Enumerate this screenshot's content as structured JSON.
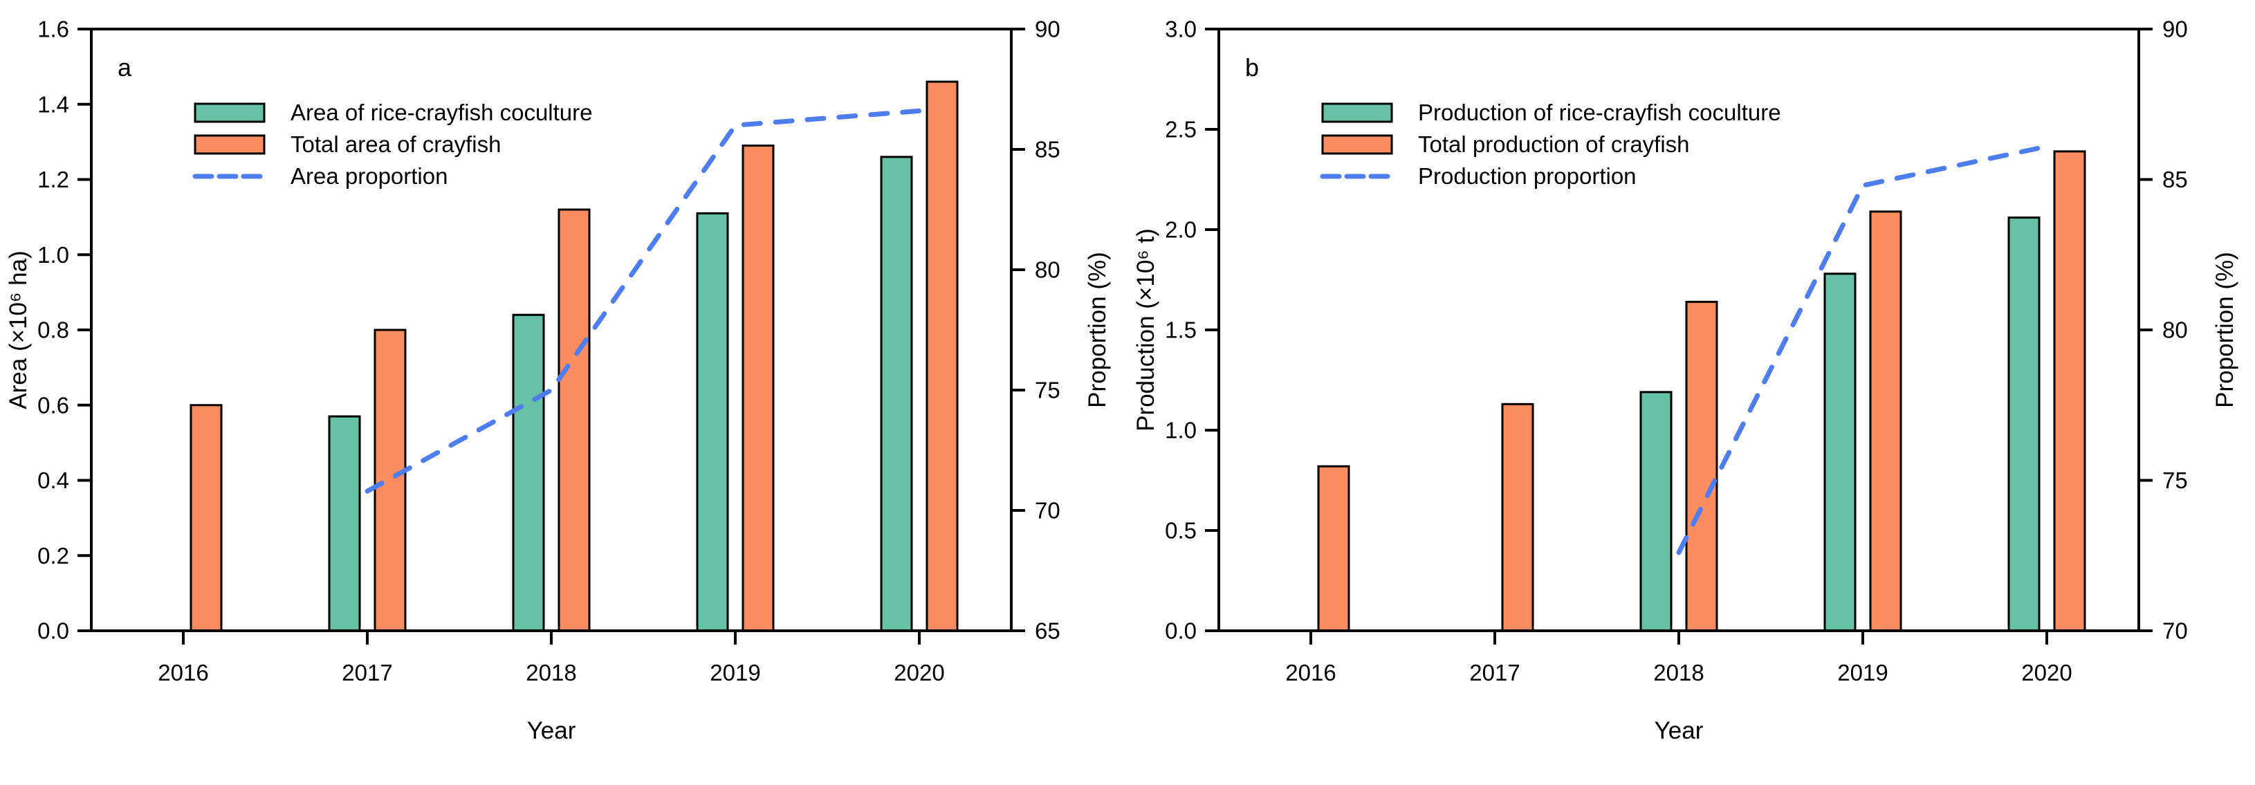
{
  "figure": {
    "background": "#ffffff",
    "description": "Two-panel bar and line chart of rice-crayfish coculture in 2016-2020"
  },
  "colors": {
    "coculture_bar": "#66C2A5",
    "total_bar": "#FB8D61",
    "proportion_line": "#4E7DEE",
    "bar_outline": "#000000",
    "axis": "#000000"
  },
  "chart_data": [
    {
      "type": "bar",
      "panel_label": "a",
      "categories": [
        "2016",
        "2017",
        "2018",
        "2019",
        "2020"
      ],
      "xlabel": "Year",
      "ylabel_left": "Area (×10⁶ ha)",
      "ylabel_right": "Proportion (%)",
      "ylim_left": [
        0.0,
        1.6
      ],
      "yticks_left": [
        "0.0",
        "0.2",
        "0.4",
        "0.6",
        "0.8",
        "1.0",
        "1.2",
        "1.4",
        "1.6"
      ],
      "ylim_right": [
        65,
        90
      ],
      "yticks_right": [
        "65",
        "70",
        "75",
        "80",
        "85",
        "90"
      ],
      "grid": false,
      "legend_position": "upper-left-inside",
      "series": [
        {
          "name": "Area of rice-crayfish coculture",
          "type": "bar",
          "axis": "left",
          "color_key": "coculture_bar",
          "values": [
            null,
            0.57,
            0.84,
            1.11,
            1.26
          ]
        },
        {
          "name": "Total area of crayfish",
          "type": "bar",
          "axis": "left",
          "color_key": "total_bar",
          "values": [
            0.6,
            0.8,
            1.12,
            1.29,
            1.46
          ]
        },
        {
          "name": "Area proportion",
          "type": "line",
          "axis": "right",
          "color_key": "proportion_line",
          "values": [
            null,
            70.8,
            75.0,
            86.0,
            86.6
          ]
        }
      ]
    },
    {
      "type": "bar",
      "panel_label": "b",
      "categories": [
        "2016",
        "2017",
        "2018",
        "2019",
        "2020"
      ],
      "xlabel": "Year",
      "ylabel_left": "Production (×10⁶ t)",
      "ylabel_right": "Proportion (%)",
      "ylim_left": [
        0.0,
        3.0
      ],
      "yticks_left": [
        "0.0",
        "0.5",
        "1.0",
        "1.5",
        "2.0",
        "2.5",
        "3.0"
      ],
      "ylim_right": [
        70,
        90
      ],
      "yticks_right": [
        "70",
        "75",
        "80",
        "85",
        "90"
      ],
      "grid": false,
      "legend_position": "upper-left-inside",
      "series": [
        {
          "name": "Production of rice-crayfish coculture",
          "type": "bar",
          "axis": "left",
          "color_key": "coculture_bar",
          "values": [
            null,
            null,
            1.19,
            1.78,
            2.06
          ]
        },
        {
          "name": "Total production of crayfish",
          "type": "bar",
          "axis": "left",
          "color_key": "total_bar",
          "values": [
            0.82,
            1.13,
            1.64,
            2.09,
            2.39
          ]
        },
        {
          "name": "Production proportion",
          "type": "line",
          "axis": "right",
          "color_key": "proportion_line",
          "values": [
            null,
            null,
            72.6,
            84.8,
            86.1
          ]
        }
      ]
    }
  ]
}
